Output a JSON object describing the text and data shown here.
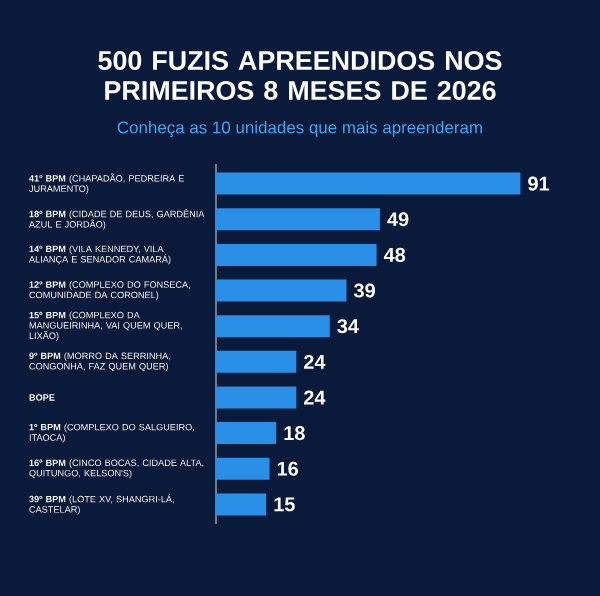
{
  "chart_data": {
    "type": "bar",
    "orientation": "horizontal",
    "title": "500 FUZIS APREENDIDOS NOS PRIMEIROS 8 MESES DE 2026",
    "subtitle": "Conheça as 10 unidades que mais apreenderam",
    "categories": [
      "**41º BPM** (CHAPADÃO, PEDREIRA E JURAMENTO)",
      "**18º BPM** (CIDADE DE DEUS, GARDÊNIA AZUL E JORDÃO)",
      "**14º BPM** (VILA KENNEDY, VILA ALIANÇA E SENADOR CAMARÁ)",
      "**12º BPM** (COMPLEXO DO FONSECA, COMUNIDADE DA CORONEL)",
      "**15º BPM** (COMPLEXO DA MANGUEIRINHA, VAI QUEM QUER, LIXÃO)",
      "**9º BPM** (MORRO DA SERRINHA, CONGONHA, FAZ QUEM QUER)",
      "**BOPE**",
      "**1º BPM** (COMPLEXO DO SALGUEIRO, ITAOCA)",
      "**16º BPM** (CINCO BOCAS, CIDADE ALTA, QUITUNGO, KELSON'S)",
      "**39º BPM** (LOTE XV, SHANGRI-LÁ, CASTELAR)"
    ],
    "values": [
      91,
      49,
      48,
      39,
      34,
      24,
      24,
      18,
      16,
      15
    ],
    "color": "#2a8fe6",
    "data_labels": true
  }
}
